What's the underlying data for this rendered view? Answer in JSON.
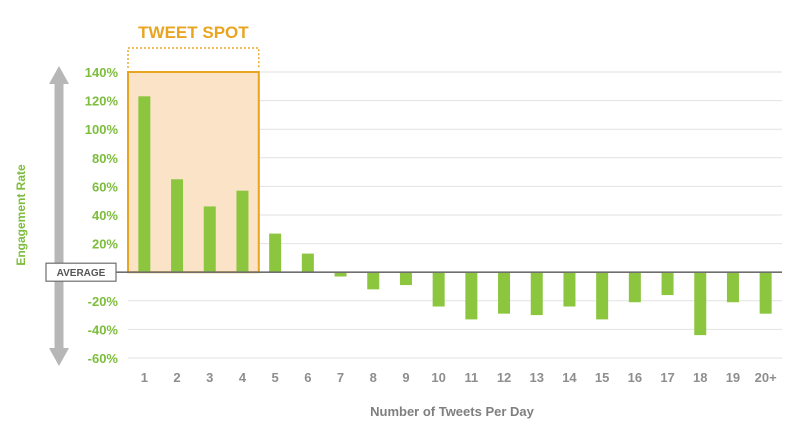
{
  "chart_data": {
    "type": "bar",
    "categories": [
      "1",
      "2",
      "3",
      "4",
      "5",
      "6",
      "7",
      "8",
      "9",
      "10",
      "11",
      "12",
      "13",
      "14",
      "15",
      "16",
      "17",
      "18",
      "19",
      "20+"
    ],
    "values": [
      123,
      65,
      46,
      57,
      27,
      13,
      -3,
      -12,
      -9,
      -24,
      -33,
      -29,
      -30,
      -24,
      -33,
      -21,
      -16,
      -44,
      -21,
      -29
    ],
    "ylim": [
      -60,
      140
    ],
    "yticks": [
      "140%",
      "120%",
      "100%",
      "80%",
      "60%",
      "40%",
      "20%",
      "",
      "-20%",
      "-40%",
      "-60%"
    ],
    "xlabel": "Number of Tweets Per Day",
    "ylabel": "Engagement Rate",
    "highlight": {
      "label": "TWEET SPOT",
      "from": "1",
      "to": "4"
    },
    "baseline_label": "AVERAGE",
    "grid": true,
    "colors": {
      "bar": "#8cc63f",
      "highlight_fill": "#fbe3c8",
      "highlight_border": "#e9a521",
      "ytick": "#7dbd3c",
      "xtick": "#8e8e8e",
      "grid": "#e2e2e2",
      "arrow": "#b7b7b7"
    }
  }
}
